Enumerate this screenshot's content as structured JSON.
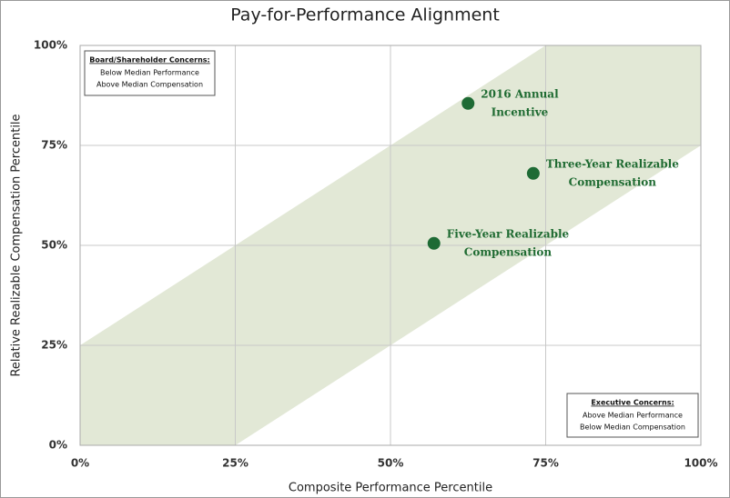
{
  "chart_data": {
    "type": "scatter",
    "title": "Pay-for-Performance Alignment",
    "xlabel": "Composite Performance Percentile",
    "ylabel": "Relative Realizable Compensation Percentile",
    "x": [
      62.5,
      73,
      57
    ],
    "values": [
      85.5,
      68,
      50.5
    ],
    "labels": [
      [
        "2016 Annual",
        "Incentive"
      ],
      [
        "Three-Year Realizable",
        "Compensation"
      ],
      [
        "Five-Year Realizable",
        "Compensation"
      ]
    ],
    "color": "#1e6b35",
    "band_color": "#e2e8d6",
    "band": 25,
    "xlim": [
      0,
      100
    ],
    "ylim": [
      0,
      100
    ],
    "xticks": [
      {
        "value": 0,
        "label": "0%"
      },
      {
        "value": 25,
        "label": "25%"
      },
      {
        "value": 50,
        "label": "50%"
      },
      {
        "value": 75,
        "label": "75%"
      },
      {
        "value": 100,
        "label": "100%"
      }
    ],
    "yticks": [
      {
        "value": 0,
        "label": "0%"
      },
      {
        "value": 25,
        "label": "25%"
      },
      {
        "value": 50,
        "label": "50%"
      },
      {
        "value": 75,
        "label": "75%"
      },
      {
        "value": 100,
        "label": "100%"
      }
    ],
    "grid": true,
    "annotations": [
      {
        "title": "Board/Shareholder Concerns:",
        "lines": [
          "Below Median Performance",
          "Above Median Compensation"
        ]
      },
      {
        "title": "Executive Concerns:",
        "lines": [
          "Above Median Performance",
          "Below Median Compensation"
        ]
      }
    ]
  }
}
